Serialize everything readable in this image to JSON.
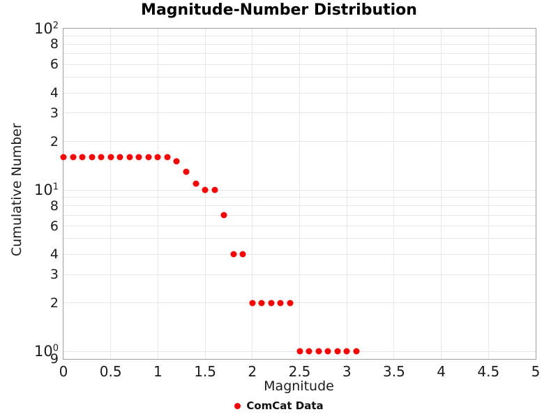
{
  "chart_data": {
    "type": "scatter",
    "title": "Magnitude-Number Distribution",
    "xlabel": "Magnitude",
    "ylabel": "Cumulative Number",
    "x_range": [
      0,
      5
    ],
    "y_range": [
      0.9,
      100
    ],
    "y_scale": "log",
    "grid": true,
    "legend_position": "below",
    "legend": [
      {
        "label": "ComCat Data",
        "color": "#ff0000",
        "marker": "circle"
      }
    ],
    "x_ticks": [
      {
        "label": "0",
        "value": 0
      },
      {
        "label": "0.5",
        "value": 0.5
      },
      {
        "label": "1",
        "value": 1
      },
      {
        "label": "1.5",
        "value": 1.5
      },
      {
        "label": "2",
        "value": 2
      },
      {
        "label": "2.5",
        "value": 2.5
      },
      {
        "label": "3",
        "value": 3
      },
      {
        "label": "3.5",
        "value": 3.5
      },
      {
        "label": "4",
        "value": 4
      },
      {
        "label": "4.5",
        "value": 4.5
      },
      {
        "label": "5",
        "value": 5
      }
    ],
    "y_ticks": [
      {
        "base": "10",
        "exp": "2",
        "value": 100
      },
      {
        "label": "8",
        "value": 80
      },
      {
        "label": "6",
        "value": 60
      },
      {
        "label": "4",
        "value": 40
      },
      {
        "label": "3",
        "value": 30
      },
      {
        "label": "2",
        "value": 20
      },
      {
        "base": "10",
        "exp": "1",
        "value": 10
      },
      {
        "label": "8",
        "value": 8
      },
      {
        "label": "6",
        "value": 6
      },
      {
        "label": "4",
        "value": 4
      },
      {
        "label": "3",
        "value": 3
      },
      {
        "label": "2",
        "value": 2
      },
      {
        "base": "10",
        "exp": "0",
        "value": 1
      },
      {
        "label": "9",
        "value": 0.9
      }
    ],
    "y_gridlines": [
      90,
      80,
      70,
      60,
      50,
      40,
      30,
      20,
      10,
      9,
      8,
      7,
      6,
      5,
      4,
      3,
      2,
      1
    ],
    "series": [
      {
        "name": "ComCat Data",
        "color": "#ff0000",
        "points": [
          [
            0.0,
            16
          ],
          [
            0.1,
            16
          ],
          [
            0.2,
            16
          ],
          [
            0.3,
            16
          ],
          [
            0.4,
            16
          ],
          [
            0.5,
            16
          ],
          [
            0.6,
            16
          ],
          [
            0.7,
            16
          ],
          [
            0.8,
            16
          ],
          [
            0.9,
            16
          ],
          [
            1.0,
            16
          ],
          [
            1.1,
            16
          ],
          [
            1.2,
            15
          ],
          [
            1.3,
            13
          ],
          [
            1.4,
            11
          ],
          [
            1.5,
            10
          ],
          [
            1.6,
            10
          ],
          [
            1.7,
            7
          ],
          [
            1.8,
            4
          ],
          [
            1.9,
            4
          ],
          [
            2.0,
            2
          ],
          [
            2.1,
            2
          ],
          [
            2.2,
            2
          ],
          [
            2.3,
            2
          ],
          [
            2.4,
            2
          ],
          [
            2.5,
            1
          ],
          [
            2.6,
            1
          ],
          [
            2.7,
            1
          ],
          [
            2.8,
            1
          ],
          [
            2.9,
            1
          ],
          [
            3.0,
            1
          ],
          [
            3.1,
            1
          ]
        ]
      }
    ]
  }
}
